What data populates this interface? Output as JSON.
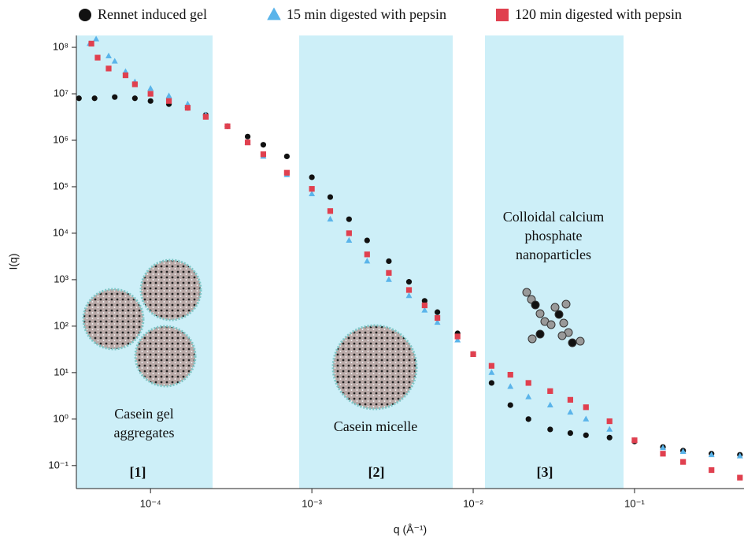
{
  "chart_data": {
    "type": "scatter",
    "x_label": "q (Å⁻¹)",
    "y_label": "I(q)",
    "log_x": true,
    "log_y": true,
    "xlim": [
      3.47e-05,
      0.477
    ],
    "ylim": [
      0.032,
      180000000
    ],
    "xticks": [
      {
        "value": 0.0001,
        "label": "10⁻⁴"
      },
      {
        "value": 0.001,
        "label": "10⁻³"
      },
      {
        "value": 0.01,
        "label": "10⁻²"
      },
      {
        "value": 0.1,
        "label": "10⁻¹"
      }
    ],
    "yticks": [
      {
        "value": 0.1,
        "label": "10⁻¹"
      },
      {
        "value": 1,
        "label": "10⁰"
      },
      {
        "value": 10,
        "label": "10¹"
      },
      {
        "value": 100,
        "label": "10²"
      },
      {
        "value": 1000,
        "label": "10³"
      },
      {
        "value": 10000,
        "label": "10⁴"
      },
      {
        "value": 100000,
        "label": "10⁵"
      },
      {
        "value": 1000000,
        "label": "10⁶"
      },
      {
        "value": 10000000,
        "label": "10⁷"
      },
      {
        "value": 100000000,
        "label": "10⁸"
      }
    ],
    "legend": "top",
    "series": [
      {
        "name": "Rennet induced gel",
        "color": "#111111",
        "marker": "circle",
        "x": [
          3.6e-05,
          4.5e-05,
          6e-05,
          8e-05,
          0.0001,
          0.00013,
          0.00017,
          0.00022,
          0.0003,
          0.0004,
          0.0005,
          0.0007,
          0.001,
          0.0013,
          0.0017,
          0.0022,
          0.003,
          0.004,
          0.005,
          0.006,
          0.008,
          0.01,
          0.013,
          0.017,
          0.022,
          0.03,
          0.04,
          0.05,
          0.07,
          0.1,
          0.15,
          0.2,
          0.3,
          0.45
        ],
        "y": [
          8000000,
          8000000,
          8500000,
          8000000,
          7000000,
          6000000,
          5000000,
          3500000,
          2000000,
          1200000,
          800000,
          450000,
          160000,
          60000,
          20000,
          7000,
          2500,
          900,
          350,
          200,
          70,
          25,
          6,
          2,
          1,
          0.6,
          0.5,
          0.45,
          0.4,
          0.33,
          0.25,
          0.21,
          0.18,
          0.17
        ]
      },
      {
        "name": "15 min digested with pepsin",
        "color": "#5ab4ea",
        "marker": "triangle",
        "x": [
          4.2e-05,
          4.6e-05,
          5.5e-05,
          6e-05,
          7e-05,
          8e-05,
          0.0001,
          0.00013,
          0.00017,
          0.00022,
          0.0003,
          0.0004,
          0.0005,
          0.0007,
          0.001,
          0.0013,
          0.0017,
          0.0022,
          0.003,
          0.004,
          0.005,
          0.006,
          0.008,
          0.01,
          0.013,
          0.017,
          0.022,
          0.03,
          0.04,
          0.05,
          0.07,
          0.1,
          0.15,
          0.2,
          0.3,
          0.45
        ],
        "y": [
          120000000,
          150000000,
          65000000,
          50000000,
          30000000,
          18000000,
          13000000,
          9000000,
          6000000,
          3500000,
          2000000,
          900000,
          450000,
          180000,
          70000,
          20000,
          7000,
          2500,
          1000,
          450,
          220,
          120,
          50,
          25,
          10,
          5,
          3,
          2,
          1.4,
          1,
          0.6,
          0.35,
          0.24,
          0.2,
          0.17,
          0.16
        ]
      },
      {
        "name": "120 min digested with pepsin",
        "color": "#e0404f",
        "marker": "square",
        "x": [
          4.3e-05,
          4.7e-05,
          5.5e-05,
          7e-05,
          8e-05,
          0.0001,
          0.00013,
          0.00017,
          0.00022,
          0.0003,
          0.0004,
          0.0005,
          0.0007,
          0.001,
          0.0013,
          0.0017,
          0.0022,
          0.003,
          0.004,
          0.005,
          0.006,
          0.008,
          0.01,
          0.013,
          0.017,
          0.022,
          0.03,
          0.04,
          0.05,
          0.07,
          0.1,
          0.15,
          0.2,
          0.3,
          0.45
        ],
        "y": [
          120000000,
          60000000,
          35000000,
          25000000,
          16000000,
          10000000,
          7000000,
          5000000,
          3200000,
          2000000,
          900000,
          500000,
          200000,
          90000,
          30000,
          10000,
          3500,
          1400,
          600,
          280,
          150,
          60,
          25,
          14,
          9,
          6,
          4,
          2.6,
          1.8,
          0.9,
          0.35,
          0.18,
          0.12,
          0.08,
          0.055
        ]
      }
    ],
    "regions": [
      "[1]",
      "[2]",
      "[3]"
    ],
    "annotations": [
      "Casein gel",
      "aggregates",
      "Casein micelle",
      "Colloidal calcium",
      "phosphate",
      "nanoparticles"
    ]
  }
}
